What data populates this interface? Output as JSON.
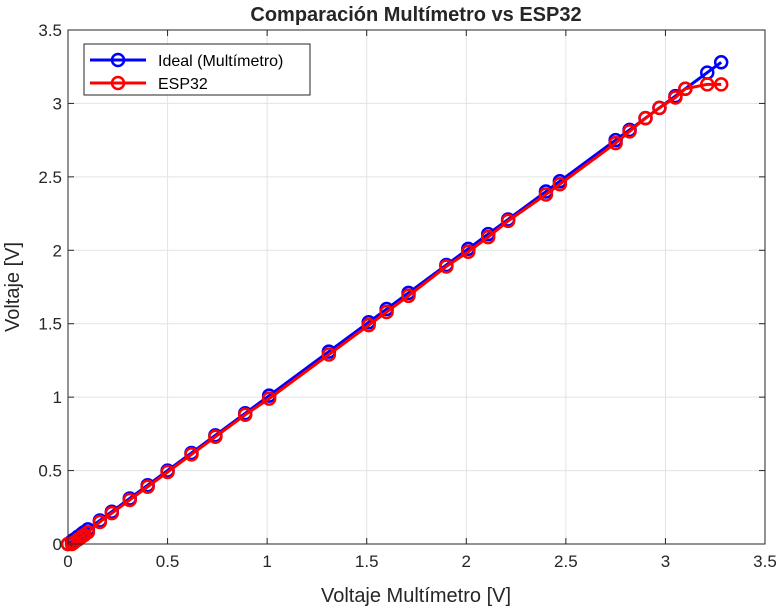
{
  "chart_data": {
    "type": "line",
    "title": "Comparación Multímetro vs ESP32",
    "xlabel": "Voltaje Multímetro [V]",
    "ylabel": "Voltaje [V]",
    "xlim": [
      0,
      3.5
    ],
    "ylim": [
      0,
      3.5
    ],
    "xticks": [
      "0",
      "0.5",
      "1",
      "1.5",
      "2",
      "2.5",
      "3",
      "3.5"
    ],
    "yticks": [
      "0",
      "0.5",
      "1",
      "1.5",
      "2",
      "2.5",
      "3",
      "3.5"
    ],
    "grid": true,
    "legend_position": "top-left",
    "x": [
      0.0,
      0.02,
      0.03,
      0.05,
      0.07,
      0.08,
      0.1,
      0.16,
      0.22,
      0.31,
      0.4,
      0.5,
      0.62,
      0.74,
      0.89,
      1.01,
      1.31,
      1.51,
      1.6,
      1.71,
      1.9,
      2.01,
      2.11,
      2.21,
      2.4,
      2.47,
      2.75,
      2.82,
      2.9,
      2.97,
      3.05,
      3.1,
      3.21,
      3.28
    ],
    "series": [
      {
        "name": "Ideal (Multímetro)",
        "color": "#0000ff",
        "values": [
          0.0,
          0.02,
          0.03,
          0.05,
          0.07,
          0.08,
          0.1,
          0.16,
          0.22,
          0.31,
          0.4,
          0.5,
          0.62,
          0.74,
          0.89,
          1.01,
          1.31,
          1.51,
          1.6,
          1.71,
          1.9,
          2.01,
          2.11,
          2.21,
          2.4,
          2.47,
          2.75,
          2.82,
          2.9,
          2.97,
          3.05,
          3.1,
          3.21,
          3.28
        ]
      },
      {
        "name": "ESP32",
        "color": "#ff0000",
        "values": [
          0.0,
          0.0,
          0.01,
          0.03,
          0.05,
          0.06,
          0.08,
          0.15,
          0.21,
          0.3,
          0.39,
          0.49,
          0.61,
          0.73,
          0.88,
          0.99,
          1.29,
          1.49,
          1.58,
          1.69,
          1.89,
          1.99,
          2.09,
          2.2,
          2.38,
          2.45,
          2.73,
          2.81,
          2.9,
          2.97,
          3.04,
          3.1,
          3.13,
          3.13
        ]
      }
    ]
  }
}
